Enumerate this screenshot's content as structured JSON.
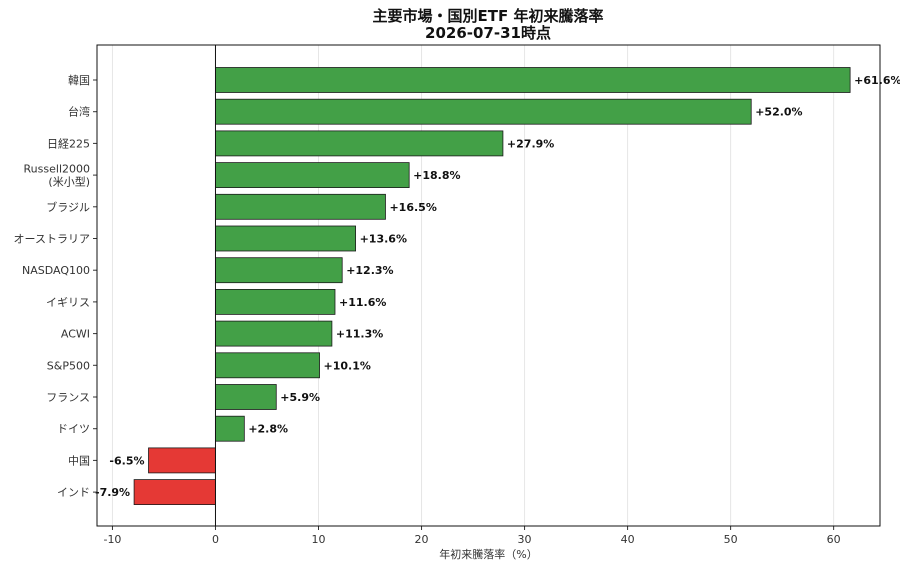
{
  "chart_data": {
    "type": "bar",
    "orientation": "horizontal",
    "title": "主要市場・国別ETF 年初来騰落率",
    "subtitle": "2026-07-31時点",
    "xlabel": "年初来騰落率（%）",
    "ylabel": "",
    "xlim": [
      -11.5,
      64.5
    ],
    "xticks": [
      -10,
      0,
      10,
      20,
      30,
      40,
      50,
      60
    ],
    "grid": "vertical",
    "categories": [
      "韓国",
      "台湾",
      "日経225",
      "Russell2000\n(米小型)",
      "ブラジル",
      "オーストラリア",
      "NASDAQ100",
      "イギリス",
      "ACWI",
      "S&P500",
      "フランス",
      "ドイツ",
      "中国",
      "インド"
    ],
    "values": [
      61.6,
      52.0,
      27.9,
      18.8,
      16.5,
      13.6,
      12.3,
      11.6,
      11.3,
      10.1,
      5.9,
      2.8,
      -6.5,
      -7.9
    ],
    "data_labels": [
      "+61.6%",
      "+52.0%",
      "+27.9%",
      "+18.8%",
      "+16.5%",
      "+13.6%",
      "+12.3%",
      "+11.6%",
      "+11.3%",
      "+10.1%",
      "+5.9%",
      "+2.8%",
      "-6.5%",
      "-7.9%"
    ],
    "colors": {
      "positive": "#43a047",
      "negative": "#e53935",
      "edge": "#1b1b1b"
    }
  }
}
